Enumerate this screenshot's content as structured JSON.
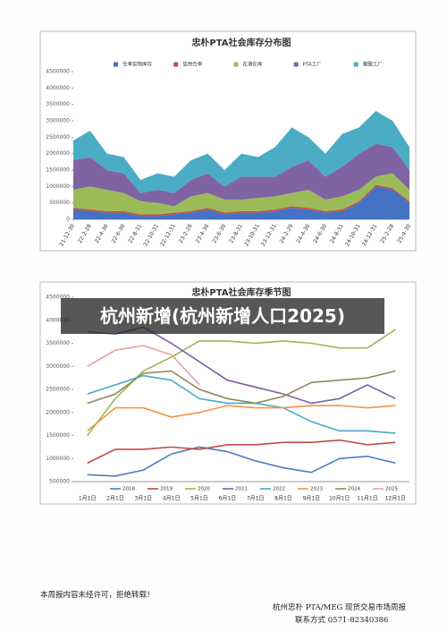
{
  "chart_data": [
    {
      "type": "area",
      "title": "忠朴PTA社会库存分布图",
      "categories": [
        "21-12-30",
        "22-2-28",
        "22-4-30",
        "22-6-30",
        "22-8-31",
        "22-10-31",
        "22-12-31",
        "23-2-28",
        "23-4-30",
        "23-6-30",
        "23-8-31",
        "23-10-31",
        "23-12-31",
        "24-2-29",
        "24-4-30",
        "24-6-30",
        "24-8-31",
        "24-10-31",
        "24-12-31",
        "25-2-28",
        "25-4-30"
      ],
      "series": [
        {
          "name": "仓单实物库存",
          "color": "#4472c4",
          "values": [
            300000,
            250000,
            200000,
            200000,
            100000,
            100000,
            150000,
            200000,
            300000,
            150000,
            200000,
            200000,
            250000,
            350000,
            300000,
            200000,
            250000,
            500000,
            1000000,
            900000,
            500000
          ]
        },
        {
          "name": "信用仓单",
          "color": "#c0504d",
          "values": [
            50000,
            50000,
            50000,
            50000,
            50000,
            50000,
            50000,
            50000,
            50000,
            50000,
            50000,
            50000,
            50000,
            50000,
            50000,
            50000,
            50000,
            50000,
            50000,
            50000,
            50000
          ]
        },
        {
          "name": "在港在库",
          "color": "#9bbb59",
          "values": [
            550000,
            700000,
            650000,
            550000,
            400000,
            350000,
            200000,
            450000,
            450000,
            400000,
            350000,
            400000,
            400000,
            400000,
            550000,
            350000,
            400000,
            350000,
            250000,
            450000,
            350000
          ]
        },
        {
          "name": "PTA工厂",
          "color": "#8064a2",
          "values": [
            900000,
            900000,
            600000,
            600000,
            250000,
            400000,
            400000,
            500000,
            600000,
            400000,
            700000,
            650000,
            600000,
            800000,
            900000,
            700000,
            900000,
            1100000,
            1000000,
            800000,
            600000
          ]
        },
        {
          "name": "聚酯工厂",
          "color": "#4bacc6",
          "values": [
            600000,
            800000,
            500000,
            500000,
            400000,
            500000,
            500000,
            600000,
            600000,
            500000,
            700000,
            600000,
            900000,
            1200000,
            700000,
            700000,
            1000000,
            800000,
            1000000,
            800000,
            700000
          ]
        }
      ],
      "ylim": [
        0,
        4500000
      ],
      "yticks": [
        0,
        500000,
        1000000,
        1500000,
        2000000,
        2500000,
        3000000,
        3500000,
        4000000,
        4500000
      ],
      "grid": false,
      "legend": "top"
    },
    {
      "type": "line",
      "title": "忠朴PTA社会库存季节图",
      "categories": [
        "1月1日",
        "2月1日",
        "3月1日",
        "4月1日",
        "5月1日",
        "6月1日",
        "7月1日",
        "8月1日",
        "9月1日",
        "10月1日",
        "11月1日",
        "12月1日"
      ],
      "series": [
        {
          "name": "2018",
          "color": "#4a7ebb",
          "values": [
            650000,
            620000,
            750000,
            1100000,
            1250000,
            1150000,
            950000,
            800000,
            700000,
            1000000,
            1050000,
            900000
          ]
        },
        {
          "name": "2019",
          "color": "#be4b48",
          "values": [
            900000,
            1200000,
            1200000,
            1250000,
            1200000,
            1300000,
            1300000,
            1350000,
            1350000,
            1400000,
            1300000,
            1350000
          ]
        },
        {
          "name": "2020",
          "color": "#98b954",
          "values": [
            1500000,
            2300000,
            2900000,
            3200000,
            3550000,
            3550000,
            3500000,
            3550000,
            3500000,
            3400000,
            3400000,
            3800000
          ]
        },
        {
          "name": "2021",
          "color": "#7d60a0",
          "values": [
            3750000,
            3700000,
            3850000,
            3500000,
            3100000,
            2700000,
            2550000,
            2400000,
            2200000,
            2300000,
            2600000,
            2300000
          ]
        },
        {
          "name": "2022",
          "color": "#46aac5",
          "values": [
            2400000,
            2600000,
            2800000,
            2700000,
            2300000,
            2200000,
            2200000,
            2100000,
            1800000,
            1600000,
            1600000,
            1550000
          ]
        },
        {
          "name": "2023",
          "color": "#f69240",
          "values": [
            1600000,
            2100000,
            2100000,
            1900000,
            2000000,
            2150000,
            2100000,
            2100000,
            2150000,
            2150000,
            2100000,
            2150000
          ]
        },
        {
          "name": "2024",
          "color": "#8c8a5c",
          "values": [
            2200000,
            2400000,
            2850000,
            2900000,
            2500000,
            2300000,
            2200000,
            2350000,
            2650000,
            2700000,
            2750000,
            2900000
          ]
        },
        {
          "name": "2025",
          "color": "#e8a0a0",
          "values": [
            3000000,
            3350000,
            3450000,
            3250000,
            2600000,
            null,
            null,
            null,
            null,
            null,
            null,
            null
          ]
        }
      ],
      "ylim": [
        500000,
        4500000
      ],
      "yticks": [
        500000,
        1000000,
        1500000,
        2000000,
        2500000,
        3000000,
        3500000,
        4000000,
        4500000
      ],
      "grid": false,
      "legend": "bottom"
    }
  ],
  "overlay_title": "杭州新增(杭州新增人口2025)",
  "footer": {
    "notice": "本周报内容未经许可，拒绝转载！",
    "publisher": "杭州忠朴 PTA/MEG 现货交易市场周报",
    "contact": "联系方式 0571-82340386"
  }
}
